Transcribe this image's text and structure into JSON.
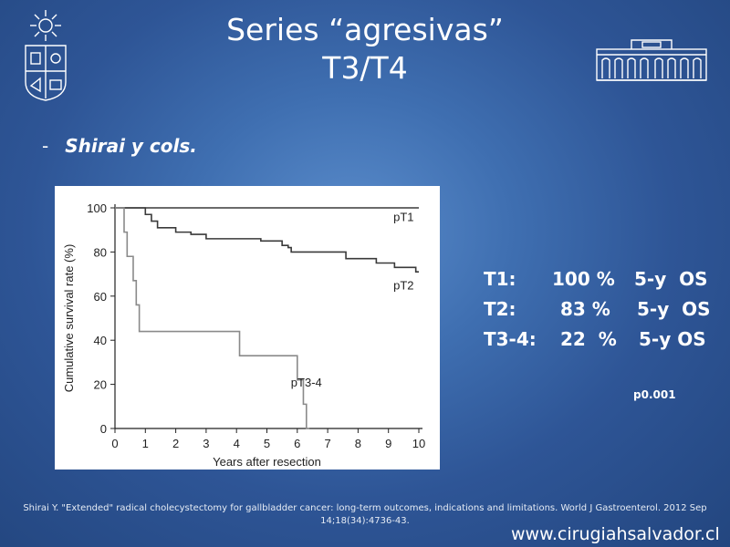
{
  "slide": {
    "title_line1": "Series “agresivas”",
    "title_line2": "T3/T4",
    "bullet_dash": "-",
    "bullet_text": "Shirai y cols.",
    "stats": [
      {
        "group": "T1:",
        "value": "100 %",
        "metric": "5-y  OS"
      },
      {
        "group": "T2:",
        "value": "83 %",
        "metric": "5-y  OS"
      },
      {
        "group": "T3-4:",
        "value": "22  %",
        "metric": "5-y OS"
      }
    ],
    "p_value": "p0.001",
    "footnote": "Shirai Y. \"Extended\" radical cholecystectomy for gallbladder cancer: long-term outcomes, indications and limitations. World J Gastroenterol. 2012 Sep 14;18(34):4736-43.",
    "website": "www.cirugiahsalvador.cl"
  },
  "colors": {
    "text": "#ffffff",
    "pT1_line": "#3a3a3a",
    "pT2_line": "#3a3a3a",
    "pT3_4_line": "#8a8a8a"
  },
  "chart_data": {
    "type": "line",
    "xlabel": "Years after resection",
    "ylabel": "Cumulative survival rate (%)",
    "xlim": [
      0,
      10
    ],
    "ylim": [
      0,
      100
    ],
    "xticks": [
      0,
      1,
      2,
      3,
      4,
      5,
      6,
      7,
      8,
      9,
      10
    ],
    "yticks": [
      0,
      20,
      40,
      60,
      80,
      100
    ],
    "series": [
      {
        "name": "pT1",
        "step": true,
        "x": [
          0,
          10
        ],
        "y": [
          100,
          100
        ]
      },
      {
        "name": "pT2",
        "step": true,
        "x": [
          0,
          1.0,
          1.2,
          1.4,
          2.0,
          2.5,
          3.0,
          4.0,
          4.8,
          5.5,
          5.7,
          5.8,
          7.6,
          8.6,
          9.2,
          9.9,
          10
        ],
        "y": [
          100,
          97,
          94,
          91,
          89,
          88,
          86,
          86,
          85,
          83,
          82,
          80,
          77,
          75,
          73,
          71,
          71
        ]
      },
      {
        "name": "pT3-4",
        "step": true,
        "x": [
          0,
          0.3,
          0.4,
          0.6,
          0.7,
          0.8,
          4.1,
          6.0,
          6.2,
          6.3,
          6.4
        ],
        "y": [
          100,
          89,
          78,
          67,
          56,
          44,
          33,
          22,
          11,
          0,
          0
        ]
      }
    ],
    "annotations": [
      {
        "text": "pT1",
        "x": 9.5,
        "y": 94
      },
      {
        "text": "pT2",
        "x": 9.5,
        "y": 63
      },
      {
        "text": "pT3-4",
        "x": 6.3,
        "y": 19
      }
    ]
  }
}
